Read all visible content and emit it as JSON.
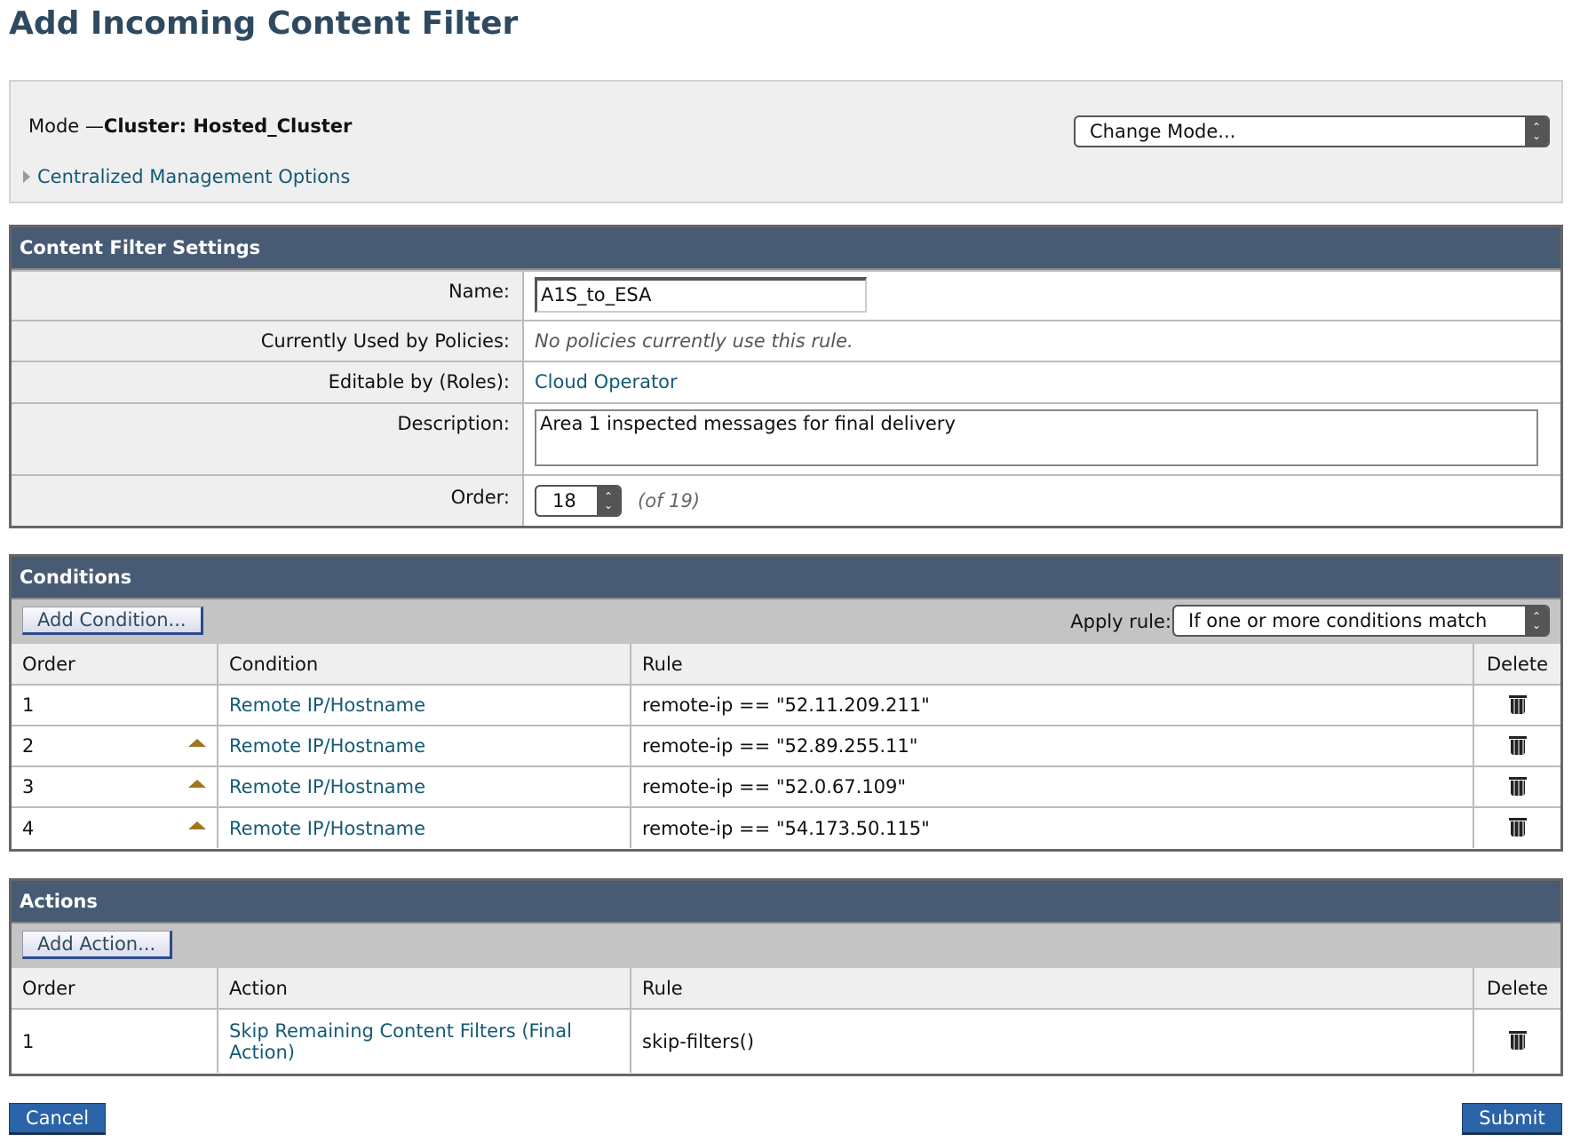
{
  "page_title": "Add Incoming Content Filter",
  "mode": {
    "prefix": "Mode —",
    "value": "Cluster: Hosted_Cluster",
    "cmo_link": "Centralized Management Options",
    "change_mode": "Change Mode..."
  },
  "settings": {
    "header": "Content Filter Settings",
    "name_label": "Name:",
    "name_value": "A1S_to_ESA",
    "used_label": "Currently Used by Policies:",
    "used_value": "No policies currently use this rule.",
    "roles_label": "Editable by (Roles):",
    "roles_value": "Cloud Operator",
    "desc_label": "Description:",
    "desc_value": "Area 1 inspected messages for final delivery",
    "order_label": "Order:",
    "order_value": "18",
    "order_of": "(of 19)"
  },
  "conditions": {
    "header": "Conditions",
    "add_button": "Add Condition...",
    "apply_label": "Apply rule:",
    "apply_value": "If one or more conditions match",
    "columns": [
      "Order",
      "Condition",
      "Rule",
      "Delete"
    ],
    "rows": [
      {
        "order": "1",
        "condition": "Remote IP/Hostname",
        "rule": "remote-ip == \"52.11.209.211\""
      },
      {
        "order": "2",
        "condition": "Remote IP/Hostname",
        "rule": "remote-ip == \"52.89.255.11\""
      },
      {
        "order": "3",
        "condition": "Remote IP/Hostname",
        "rule": "remote-ip == \"52.0.67.109\""
      },
      {
        "order": "4",
        "condition": "Remote IP/Hostname",
        "rule": "remote-ip == \"54.173.50.115\""
      }
    ]
  },
  "actions": {
    "header": "Actions",
    "add_button": "Add Action...",
    "columns": [
      "Order",
      "Action",
      "Rule",
      "Delete"
    ],
    "rows": [
      {
        "order": "1",
        "action": "Skip Remaining Content Filters (Final Action)",
        "rule": "skip-filters()"
      }
    ]
  },
  "footer": {
    "cancel": "Cancel",
    "submit": "Submit"
  }
}
